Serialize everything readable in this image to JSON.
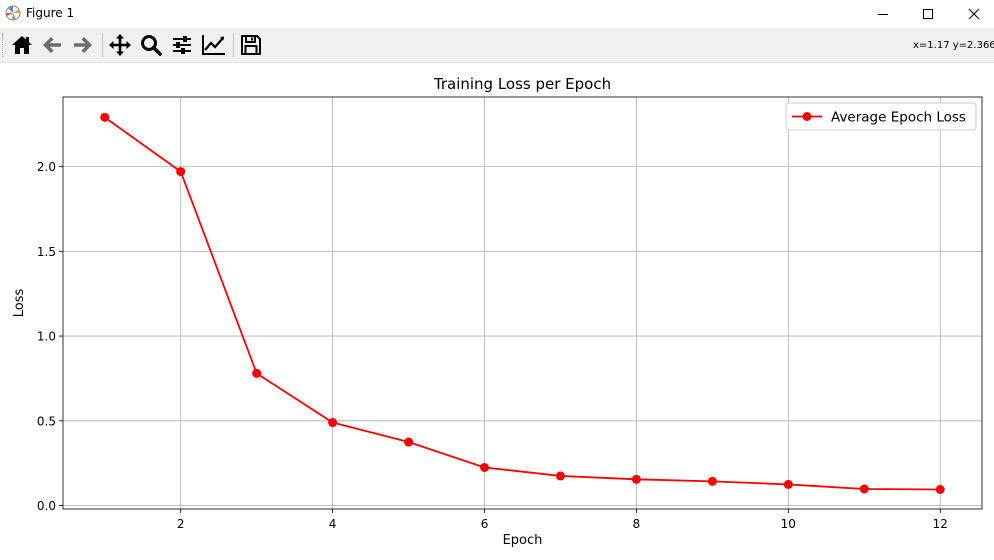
{
  "window": {
    "title": "Figure 1"
  },
  "toolbar": {
    "buttons": [
      {
        "name": "home-icon"
      },
      {
        "name": "back-arrow-icon"
      },
      {
        "name": "forward-arrow-icon"
      },
      {
        "name": "pan-icon"
      },
      {
        "name": "zoom-icon"
      },
      {
        "name": "configure-subplots-icon"
      },
      {
        "name": "edit-axis-icon"
      },
      {
        "name": "save-icon"
      }
    ],
    "coords": "x=1.17 y=2.366"
  },
  "colors": {
    "line": "#ff0000",
    "grid": "#b0b0b0",
    "axes": "#000000"
  },
  "chart_data": {
    "type": "line",
    "title": "Training Loss per Epoch",
    "xlabel": "Epoch",
    "ylabel": "Loss",
    "xlim": [
      0.45,
      12.55
    ],
    "ylim": [
      -0.02,
      2.41
    ],
    "xticks": [
      2,
      4,
      6,
      8,
      10,
      12
    ],
    "xtick_labels": [
      "2",
      "4",
      "6",
      "8",
      "10",
      "12"
    ],
    "yticks": [
      0.0,
      0.5,
      1.0,
      1.5,
      2.0
    ],
    "ytick_labels": [
      "0.0",
      "0.5",
      "1.0",
      "1.5",
      "2.0"
    ],
    "grid": true,
    "legend_position": "top-right",
    "series": [
      {
        "name": "Average Epoch Loss",
        "marker": "circle",
        "x": [
          1,
          2,
          3,
          4,
          5,
          6,
          7,
          8,
          9,
          10,
          11,
          12
        ],
        "y": [
          2.29,
          1.97,
          0.78,
          0.49,
          0.375,
          0.225,
          0.175,
          0.155,
          0.143,
          0.125,
          0.098,
          0.095
        ]
      }
    ]
  }
}
